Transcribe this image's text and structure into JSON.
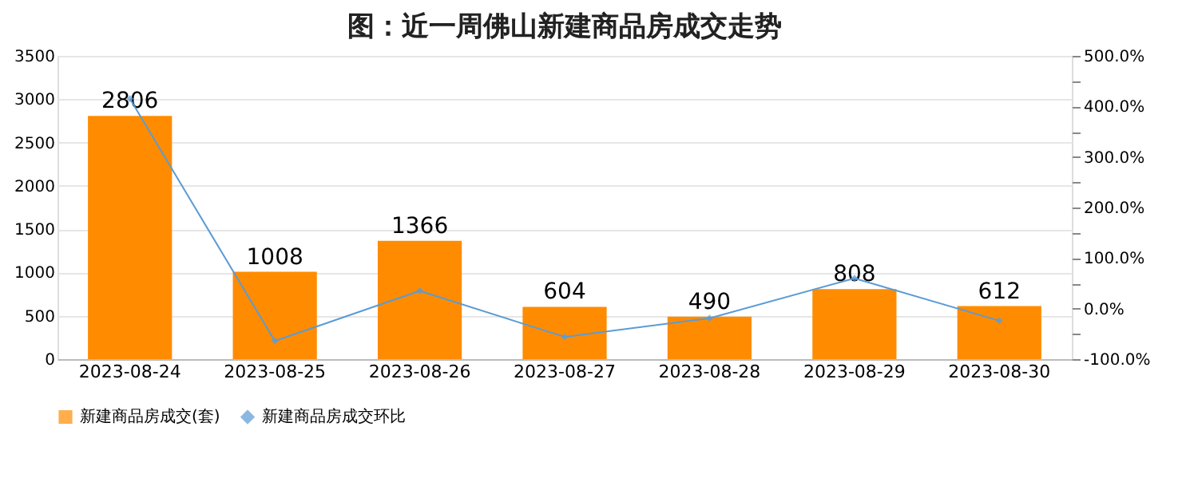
{
  "chart_data": {
    "type": "bar",
    "title": "图：近一周佛山新建商品房成交走势",
    "categories": [
      "2023-08-24",
      "2023-08-25",
      "2023-08-26",
      "2023-08-27",
      "2023-08-28",
      "2023-08-29",
      "2023-08-30"
    ],
    "series": [
      {
        "name": "新建商品房成交(套)",
        "color": "#ff8c00",
        "values": [
          2806,
          1008,
          1366,
          604,
          490,
          808,
          612
        ],
        "value_labels": [
          "2806",
          "1008",
          "1366",
          "604",
          "490",
          "808",
          "612"
        ]
      },
      {
        "name": "新建商品房成交环比",
        "type": "line",
        "axis": "y2",
        "color": "#5b9bd5",
        "marker": "diamond",
        "values": [
          415,
          -64,
          35,
          -56,
          -19,
          60,
          -24
        ]
      }
    ],
    "ylim": [
      0,
      3500
    ],
    "yticks": [
      0,
      500,
      1000,
      1500,
      2000,
      2500,
      3000,
      3500
    ],
    "y2lim": [
      -100,
      500
    ],
    "y2ticks": [
      {
        "value": -100,
        "label": "-100.0%"
      },
      {
        "value": -50,
        "label": null
      },
      {
        "value": 0,
        "label": "0.0%"
      },
      {
        "value": 50,
        "label": null
      },
      {
        "value": 100,
        "label": "100.0%"
      },
      {
        "value": 150,
        "label": null
      },
      {
        "value": 200,
        "label": "200.0%"
      },
      {
        "value": 250,
        "label": null
      },
      {
        "value": 300,
        "label": "300.0%"
      },
      {
        "value": 350,
        "label": null
      },
      {
        "value": 400,
        "label": "400.0%"
      },
      {
        "value": 450,
        "label": null
      },
      {
        "value": 500,
        "label": "500.0%"
      }
    ],
    "grid": "y",
    "legend": "bottom"
  }
}
